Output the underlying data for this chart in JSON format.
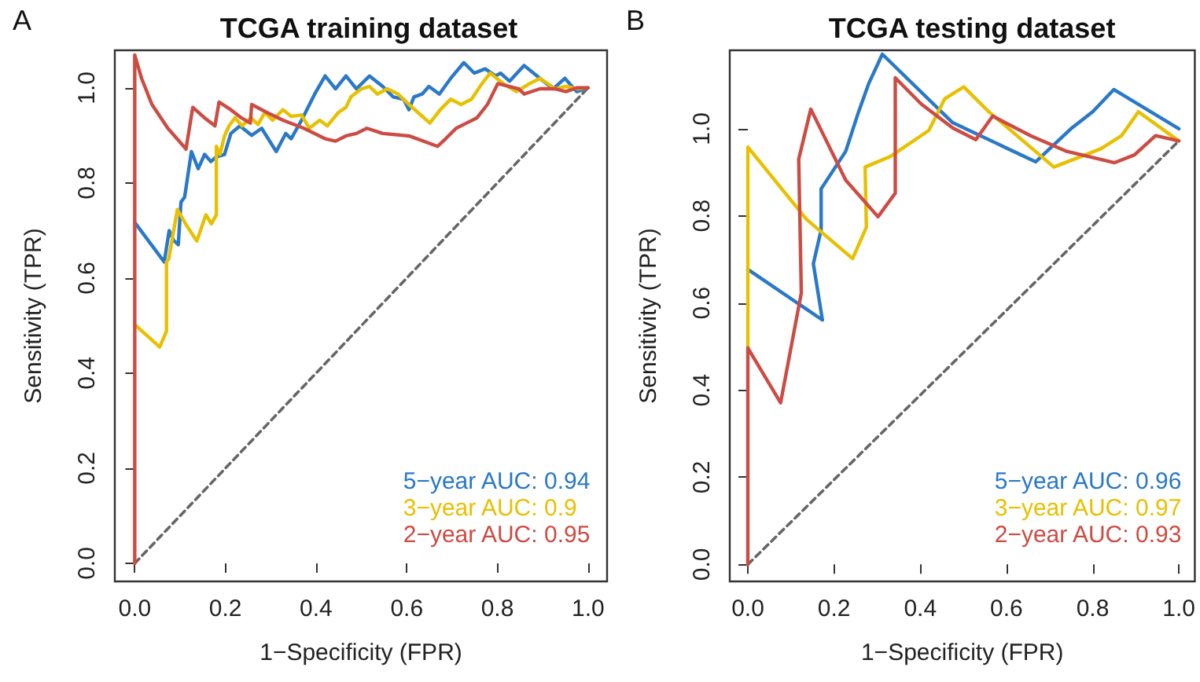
{
  "chart_data": [
    {
      "type": "line",
      "title": "TCGA training dataset",
      "xlabel": "1−Specificity (FPR)",
      "ylabel": "Sensitivity (TPR)",
      "annotations": [
        "A"
      ],
      "legend": "bottom right",
      "grid": false,
      "marker": "none",
      "xlim": [
        -0.044,
        1.042
      ],
      "ylim": [
        -0.038,
        1.079
      ],
      "xticks": [
        {
          "value": 0,
          "label": "0.0"
        },
        {
          "value": 0.2,
          "label": "0.2"
        },
        {
          "value": 0.4,
          "label": "0.4"
        },
        {
          "value": 0.6,
          "label": "0.6"
        },
        {
          "value": 0.8,
          "label": "0.8"
        },
        {
          "value": 1,
          "label": "1.0"
        }
      ],
      "yticks": [
        {
          "value": 0,
          "label": "0.0"
        },
        {
          "value": 0.2,
          "label": "0.2"
        },
        {
          "value": 0.4,
          "label": "0.4"
        },
        {
          "value": 0.6,
          "label": "0.6"
        },
        {
          "value": 0.8,
          "label": "0.8"
        },
        {
          "value": 1,
          "label": "1.0"
        }
      ],
      "series": [
        {
          "name": "5−year AUC: 0.94",
          "color": "#2a78c8",
          "x": [
            0,
            0.065,
            0.076,
            0.085,
            0.096,
            0.102,
            0.11,
            0.125,
            0.14,
            0.154,
            0.168,
            0.18,
            0.198,
            0.212,
            0.232,
            0.258,
            0.28,
            0.312,
            0.333,
            0.345,
            0.368,
            0.397,
            0.42,
            0.443,
            0.466,
            0.489,
            0.518,
            0.547,
            0.57,
            0.593,
            0.605,
            0.616,
            0.634,
            0.649,
            0.672,
            0.697,
            0.726,
            0.749,
            0.773,
            0.796,
            0.807,
            0.827,
            0.859,
            0.894,
            0.923,
            0.949,
            0.975,
            1
          ],
          "values": [
            0.717,
            0.634,
            0.7,
            0.68,
            0.67,
            0.76,
            0.77,
            0.866,
            0.83,
            0.86,
            0.845,
            0.855,
            0.86,
            0.904,
            0.92,
            0.9,
            0.915,
            0.866,
            0.904,
            0.893,
            0.932,
            0.987,
            1.025,
            0.998,
            1.025,
            0.998,
            1.025,
            1.003,
            0.981,
            0.976,
            0.954,
            0.981,
            0.987,
            1.003,
            0.987,
            1.02,
            1.053,
            1.031,
            1.04,
            1.025,
            1.031,
            1.014,
            1.047,
            1.02,
            0.998,
            1.02,
            0.992,
            1.0
          ]
        },
        {
          "name": "3−year AUC: 0.9",
          "color": "#e8c000",
          "x": [
            0,
            0.055,
            0.07,
            0.07,
            0.075,
            0.094,
            0.114,
            0.137,
            0.157,
            0.169,
            0.18,
            0.18,
            0.188,
            0.198,
            0.208,
            0.221,
            0.237,
            0.256,
            0.272,
            0.287,
            0.304,
            0.327,
            0.345,
            0.368,
            0.385,
            0.408,
            0.425,
            0.449,
            0.466,
            0.477,
            0.5,
            0.518,
            0.535,
            0.557,
            0.581,
            0.605,
            0.651,
            0.674,
            0.697,
            0.72,
            0.743,
            0.766,
            0.784,
            0.813,
            0.842,
            0.871,
            0.894,
            0.928,
            0.951,
            0.975,
            1
          ],
          "values": [
            0.502,
            0.455,
            0.488,
            0.634,
            0.64,
            0.744,
            0.711,
            0.678,
            0.733,
            0.714,
            0.733,
            0.877,
            0.86,
            0.899,
            0.92,
            0.937,
            0.92,
            0.937,
            0.923,
            0.948,
            0.932,
            0.954,
            0.94,
            0.943,
            0.915,
            0.932,
            0.92,
            0.948,
            0.959,
            0.981,
            0.998,
            1.003,
            0.987,
            0.998,
            0.987,
            0.965,
            0.926,
            0.954,
            0.976,
            0.965,
            0.976,
            1.009,
            1.031,
            1.009,
            0.992,
            1.009,
            1.02,
            0.998,
            1.003,
            0.998,
            1.0
          ]
        },
        {
          "name": "2−year AUC: 0.95",
          "color": "#cc4c44",
          "x": [
            0,
            0,
            0.015,
            0.038,
            0.073,
            0.108,
            0.113,
            0.128,
            0.154,
            0.177,
            0.186,
            0.212,
            0.235,
            0.255,
            0.258,
            0.292,
            0.327,
            0.373,
            0.42,
            0.443,
            0.466,
            0.489,
            0.512,
            0.547,
            0.605,
            0.668,
            0.686,
            0.709,
            0.732,
            0.755,
            0.778,
            0.801,
            0.847,
            0.859,
            0.894,
            0.928,
            0.951,
            0.975,
            1
          ],
          "values": [
            0,
            1.069,
            1.02,
            0.965,
            0.915,
            0.877,
            0.871,
            0.959,
            0.937,
            0.92,
            0.97,
            0.954,
            0.937,
            0.926,
            0.965,
            0.948,
            0.932,
            0.915,
            0.893,
            0.888,
            0.899,
            0.904,
            0.915,
            0.904,
            0.899,
            0.877,
            0.893,
            0.915,
            0.926,
            0.937,
            0.965,
            1.009,
            0.998,
            0.987,
            0.998,
            0.998,
            0.992,
            1.0,
            1.0
          ]
        },
        {
          "color": "#666666",
          "line_style": "dashed",
          "x": [
            0,
            1
          ],
          "values": [
            0,
            1
          ]
        }
      ]
    },
    {
      "type": "line",
      "title": "TCGA testing dataset",
      "xlabel": "1−Specificity (FPR)",
      "ylabel": "Sensitivity (TPR)",
      "annotations": [
        "B"
      ],
      "legend": "bottom right",
      "grid": false,
      "marker": "none",
      "xlim": [
        -0.042,
        1.037
      ],
      "ylim": [
        -0.039,
        1.18
      ],
      "xticks": [
        {
          "value": 0,
          "label": "0.0"
        },
        {
          "value": 0.2,
          "label": "0.2"
        },
        {
          "value": 0.4,
          "label": "0.4"
        },
        {
          "value": 0.6,
          "label": "0.6"
        },
        {
          "value": 0.8,
          "label": "0.8"
        },
        {
          "value": 1,
          "label": "1.0"
        }
      ],
      "yticks": [
        {
          "value": 0,
          "label": "0.0"
        },
        {
          "value": 0.2,
          "label": "0.2"
        },
        {
          "value": 0.4,
          "label": "0.4"
        },
        {
          "value": 0.6,
          "label": "0.6"
        },
        {
          "value": 0.8,
          "label": "0.8"
        },
        {
          "value": 1,
          "label": "1.0"
        }
      ],
      "series": [
        {
          "name": "5−year AUC: 0.96",
          "color": "#2a78c8",
          "x": [
            0,
            0.173,
            0.152,
            0.17,
            0.17,
            0.227,
            0.257,
            0.281,
            0.312,
            0.475,
            0.668,
            0.752,
            0.8,
            0.849,
            1
          ],
          "values": [
            0.677,
            0.561,
            0.69,
            0.768,
            0.862,
            0.948,
            1.039,
            1.105,
            1.171,
            1.014,
            0.924,
            1.002,
            1.039,
            1.09,
            1.0
          ]
        },
        {
          "name": "3−year AUC: 0.97",
          "color": "#e8c000",
          "x": [
            0,
            0,
            0.136,
            0.243,
            0.275,
            0.272,
            0.33,
            0.42,
            0.457,
            0.501,
            0.559,
            0.71,
            0.819,
            0.867,
            0.906,
            1
          ],
          "values": [
            0.497,
            0.958,
            0.792,
            0.702,
            0.774,
            0.912,
            0.936,
            0.996,
            1.069,
            1.096,
            1.039,
            0.912,
            0.954,
            0.984,
            1.039,
            0.972
          ]
        },
        {
          "name": "2−year AUC: 0.93",
          "color": "#cc4c44",
          "x": [
            0,
            0,
            0.076,
            0.124,
            0.118,
            0.146,
            0.227,
            0.302,
            0.342,
            0.342,
            0.402,
            0.475,
            0.529,
            0.568,
            0.656,
            0.74,
            0.851,
            0.897,
            0.946,
            1
          ],
          "values": [
            0,
            0.497,
            0.371,
            0.623,
            0.93,
            1.045,
            0.882,
            0.798,
            0.852,
            1.117,
            1.057,
            1.002,
            0.975,
            1.029,
            0.984,
            0.948,
            0.922,
            0.94,
            0.984,
            0.972
          ]
        },
        {
          "color": "#666666",
          "line_style": "dashed",
          "x": [
            0,
            1
          ],
          "values": [
            0,
            0.972
          ]
        }
      ]
    }
  ]
}
